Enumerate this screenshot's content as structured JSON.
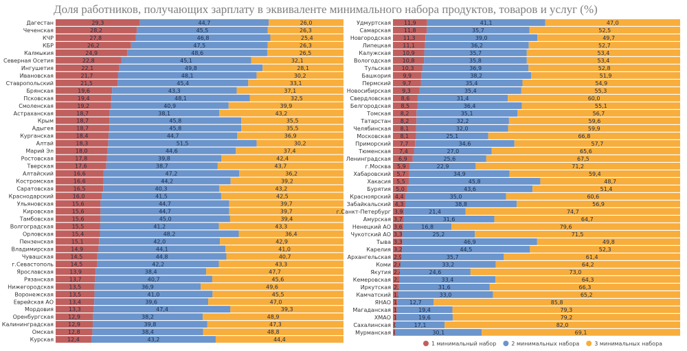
{
  "chart_data": {
    "type": "bar",
    "orientation": "horizontal",
    "stacked": true,
    "title": "Доля работников, получающих зарплату в эквиваленте минимального набора продуктов, товаров и услуг (%)",
    "legend_position": "bottom-right",
    "series_names": [
      "1 минимальный набор",
      "2 минимальных набора",
      "3 минимальных набора"
    ],
    "colors": [
      "#c0605e",
      "#6b95cc",
      "#f8ae3c"
    ],
    "panels": [
      {
        "categories": [
          "Дагестан",
          "Чеченская",
          "КЧР",
          "КБР",
          "Калмыкия",
          "Северная Осетия",
          "Ингушетия",
          "Ивановская",
          "Ставропольский",
          "Брянская",
          "Псковская",
          "Смоленская",
          "Астраханская",
          "Крым",
          "Адыгея",
          "Курганская",
          "Алтай",
          "Марий Эл",
          "Ростовская",
          "Тверская",
          "Алтайский",
          "Костромская",
          "Саратовская",
          "Краснодарский",
          "Ульяновская",
          "Кировская",
          "Тамбовская",
          "Волгоградская",
          "Орловская",
          "Пензенская",
          "Владимирская",
          "Чувашская",
          "г.Севастополь",
          "Ярославская",
          "Рязанская",
          "Нижегородская",
          "Воронежская",
          "Еврейская АО",
          "Мордовия",
          "Оренбургская",
          "Калининградская",
          "Омская",
          "Курская"
        ],
        "s1": [
          29.3,
          28.2,
          27.8,
          26.2,
          24.9,
          22.8,
          22.1,
          21.7,
          21.5,
          19.6,
          19.4,
          19.2,
          18.7,
          18.7,
          18.7,
          18.4,
          18.3,
          18.0,
          17.8,
          17.6,
          16.6,
          16.6,
          16.5,
          16.0,
          15.6,
          15.6,
          15.6,
          15.5,
          15.4,
          15.1,
          14.9,
          14.5,
          14.5,
          13.9,
          13.7,
          13.5,
          13.5,
          13.4,
          13.3,
          12.9,
          12.9,
          12.8,
          12.4
        ],
        "s2": [
          44.7,
          45.5,
          46.8,
          47.5,
          48.6,
          45.1,
          49.8,
          48.1,
          45.4,
          43.3,
          48.1,
          40.9,
          38.1,
          45.8,
          45.8,
          44.7,
          51.5,
          44.6,
          39.8,
          38.7,
          47.2,
          44.2,
          40.3,
          41.5,
          44.7,
          44.7,
          45.0,
          41.2,
          48.2,
          42.0,
          44.1,
          44.8,
          42.2,
          38.4,
          40.7,
          36.9,
          41.0,
          39.6,
          47.4,
          38.2,
          39.8,
          38.4,
          43.2
        ],
        "s3": [
          26.0,
          26.3,
          25.4,
          26.3,
          26.5,
          32.1,
          28.1,
          30.2,
          33.1,
          37.1,
          32.5,
          39.9,
          43.2,
          35.5,
          35.5,
          36.9,
          30.2,
          37.4,
          42.4,
          43.7,
          36.2,
          39.2,
          43.2,
          42.5,
          39.7,
          39.7,
          39.4,
          43.3,
          36.4,
          42.9,
          41.0,
          40.7,
          43.3,
          47.7,
          45.6,
          49.6,
          45.5,
          47.0,
          39.3,
          48.9,
          47.3,
          48.8,
          44.4
        ]
      },
      {
        "categories": [
          "Удмуртская",
          "Самарская",
          "Новгородская",
          "Липецкая",
          "Калужская",
          "Вологодская",
          "Тульская",
          "Башкория",
          "Пермский",
          "Новосибирская",
          "Свердловская",
          "Белгородская",
          "Томская",
          "Татарстан",
          "Челябинская",
          "Московская",
          "Приморский",
          "Тюменская",
          "Ленинградская",
          "г.Москва",
          "Хабаровский",
          "Хакасия",
          "Бурятия",
          "Красноярский",
          "Забайкальский",
          "г.Санкт-Петербург",
          "Амурская",
          "Ненецкий АО",
          "Чукотский АО",
          "Тыва",
          "Карелия",
          "Архангельская",
          "Коми",
          "Якутия",
          "Кемеровская",
          "Иркутская",
          "Камчатский",
          "ЯНАО",
          "Магаданская",
          "ХМАО",
          "Сахалинская",
          "Мурманская"
        ],
        "s1": [
          11.9,
          11.8,
          11.3,
          11.1,
          10.9,
          10.8,
          10.3,
          9.9,
          9.7,
          9.3,
          8.6,
          8.5,
          8.2,
          8.2,
          8.1,
          8.1,
          7.7,
          7.4,
          6.9,
          5.9,
          5.7,
          5.5,
          5.0,
          4.4,
          4.3,
          3.9,
          3.7,
          3.6,
          3.3,
          3.3,
          3.2,
          2.9,
          2.6,
          2.4,
          2.3,
          2.1,
          1.8,
          1.5,
          1.3,
          1.2,
          0.9,
          0.8
        ],
        "s2": [
          41.1,
          35.7,
          39.0,
          36.2,
          35.7,
          35.8,
          36.9,
          38.2,
          35.4,
          35.4,
          31.4,
          36.4,
          35.1,
          32.2,
          32.0,
          25.1,
          34.6,
          27.0,
          25.6,
          22.9,
          34.9,
          45.8,
          43.6,
          35.0,
          38.8,
          21.4,
          31.6,
          16.8,
          25.2,
          46.9,
          44.5,
          35.7,
          33.2,
          24.6,
          33.4,
          31.6,
          33.0,
          12.7,
          19.4,
          19.6,
          17.1,
          30.1
        ],
        "s3": [
          47.0,
          52.5,
          49.7,
          52.7,
          53.4,
          53.4,
          52.8,
          51.9,
          54.9,
          55.3,
          60.0,
          55.1,
          56.7,
          59.6,
          59.9,
          66.8,
          57.7,
          65.6,
          67.5,
          71.2,
          59.4,
          48.7,
          51.4,
          60.6,
          56.9,
          74.7,
          64.7,
          79.6,
          71.5,
          49.8,
          52.3,
          61.4,
          64.2,
          73.0,
          64.3,
          66.3,
          65.2,
          85.8,
          79.3,
          79.2,
          82.0,
          69.1
        ]
      }
    ]
  }
}
